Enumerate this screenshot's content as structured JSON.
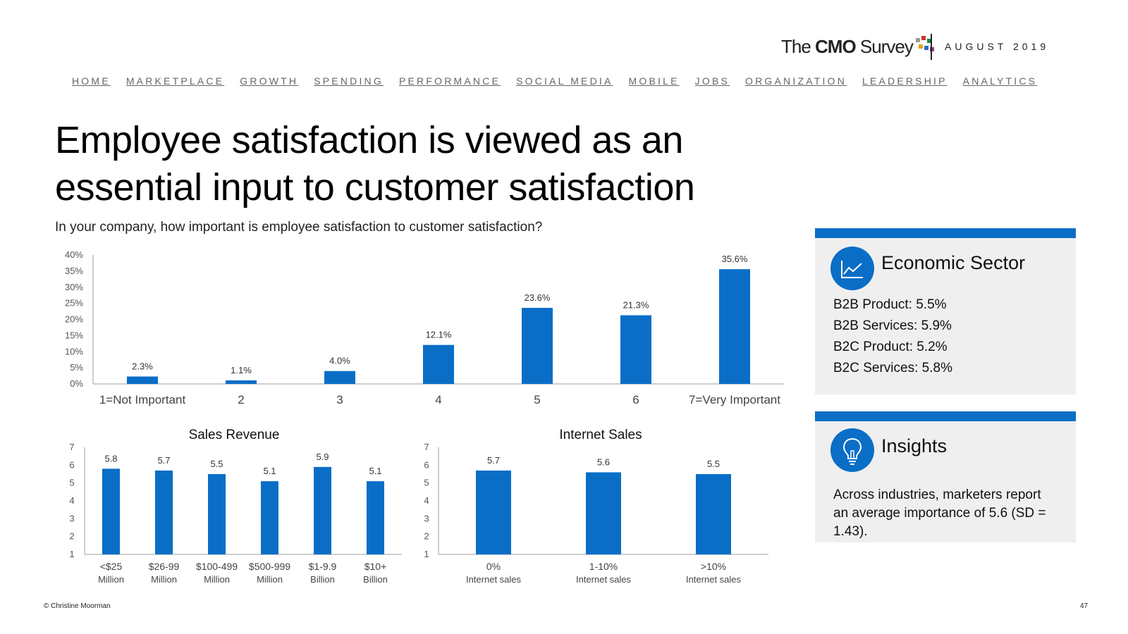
{
  "header": {
    "brand_prefix": "The ",
    "brand_bold": "CMO",
    "brand_suffix": " Survey",
    "brand_dot_colors": [
      "#9a9a9a",
      "#c0392b",
      "#1a8a3a",
      "#e6a21a",
      "#2d6cb5",
      "#8a3d9a"
    ],
    "date": "AUGUST 2019"
  },
  "nav": [
    "HOME",
    "MARKETPLACE",
    "GROWTH",
    "SPENDING",
    "PERFORMANCE",
    "SOCIAL MEDIA",
    "MOBILE",
    "JOBS",
    "ORGANIZATION",
    "LEADERSHIP",
    "ANALYTICS"
  ],
  "title": "Employee satisfaction is viewed as an essential input to customer satisfaction",
  "question": "In your company, how important is employee satisfaction to customer satisfaction?",
  "colors": {
    "accent": "#0a6ec7",
    "panel_bg": "#efefef",
    "axis": "#bdbdbd"
  },
  "chart_data": [
    {
      "type": "bar",
      "title": "",
      "categories": [
        "1=Not Important",
        "2",
        "3",
        "4",
        "5",
        "6",
        "7=Very Important"
      ],
      "values": [
        2.3,
        1.1,
        4.0,
        12.1,
        23.6,
        21.3,
        35.6
      ],
      "data_labels": [
        "2.3%",
        "1.1%",
        "4.0%",
        "12.1%",
        "23.6%",
        "21.3%",
        "35.6%"
      ],
      "yticks": [
        "0%",
        "5%",
        "10%",
        "15%",
        "20%",
        "25%",
        "30%",
        "35%",
        "40%"
      ],
      "ylim": [
        0,
        40
      ],
      "grid": false
    },
    {
      "type": "bar",
      "title": "Sales Revenue",
      "categories": [
        [
          "<$25",
          "Million"
        ],
        [
          "$26-99",
          "Million"
        ],
        [
          "$100-499",
          "Million"
        ],
        [
          "$500-999",
          "Million"
        ],
        [
          "$1-9.9",
          "Billion"
        ],
        [
          "$10+",
          "Billion"
        ]
      ],
      "values": [
        5.8,
        5.7,
        5.5,
        5.1,
        5.9,
        5.1
      ],
      "data_labels": [
        "5.8",
        "5.7",
        "5.5",
        "5.1",
        "5.9",
        "5.1"
      ],
      "yticks": [
        "1",
        "2",
        "3",
        "4",
        "5",
        "6",
        "7"
      ],
      "ylim": [
        1,
        7
      ],
      "grid": false
    },
    {
      "type": "bar",
      "title": "Internet Sales",
      "categories": [
        [
          "0%",
          "Internet sales"
        ],
        [
          "1-10%",
          "Internet sales"
        ],
        [
          ">10%",
          "Internet sales"
        ]
      ],
      "values": [
        5.7,
        5.6,
        5.5
      ],
      "data_labels": [
        "5.7",
        "5.6",
        "5.5"
      ],
      "yticks": [
        "1",
        "2",
        "3",
        "4",
        "5",
        "6",
        "7"
      ],
      "ylim": [
        1,
        7
      ],
      "grid": false
    }
  ],
  "economic_panel": {
    "icon": "line-chart-icon",
    "heading": "Economic Sector",
    "lines": [
      "B2B Product: 5.5%",
      "B2B Services: 5.9%",
      "B2C Product: 5.2%",
      "B2C Services: 5.8%"
    ]
  },
  "insights_panel": {
    "icon": "lightbulb-icon",
    "heading": "Insights",
    "text": "Across industries, marketers report an average importance of 5.6 (SD = 1.43)."
  },
  "footer": {
    "copyright": "© Christine Moorman",
    "page_number": "47"
  }
}
